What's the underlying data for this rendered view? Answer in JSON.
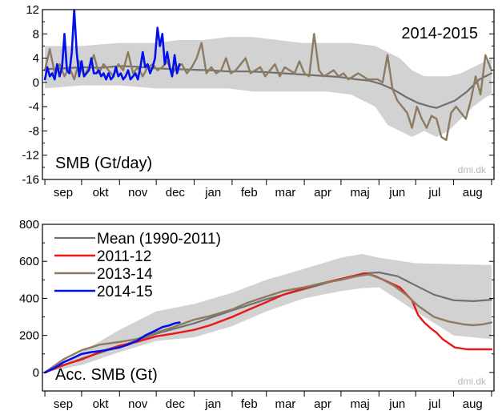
{
  "chart_data": [
    {
      "type": "line",
      "title": "",
      "panel_label": "SMB (Gt/day)",
      "season_label": "2014-2015",
      "credit": "dmi.dk",
      "xlabel": "",
      "ylabel": "",
      "ylim": [
        -16,
        12
      ],
      "yticks": [
        "-16",
        "-12",
        "-8",
        "-4",
        "0",
        "4",
        "8",
        "12"
      ],
      "x_unit": "day_of_season_from_sep_1",
      "xlim": [
        -2,
        367
      ],
      "months": [
        "sep",
        "okt",
        "nov",
        "dec",
        "jan",
        "feb",
        "mar",
        "apr",
        "maj",
        "jun",
        "jul",
        "aug"
      ],
      "grid": false,
      "band": {
        "name": "",
        "color": "#d2d2d2",
        "x": [
          0,
          30,
          61,
          91,
          110,
          130,
          150,
          170,
          190,
          210,
          230,
          250,
          270,
          280,
          290,
          300,
          310,
          320,
          330,
          340,
          350,
          360,
          365
        ],
        "upper": [
          6,
          6,
          6.5,
          6.5,
          7,
          7,
          7.5,
          7.5,
          7,
          6.5,
          6.5,
          6.5,
          6,
          5,
          4,
          2,
          1,
          1,
          1,
          1.5,
          2.5,
          3.5,
          4
        ],
        "lower": [
          -1,
          -0.5,
          -0.5,
          -1,
          -1,
          -1,
          -1,
          -1.5,
          -1.5,
          -1.5,
          -1.5,
          -2,
          -4,
          -7,
          -8,
          -9,
          -8,
          -9,
          -8,
          -6,
          -4,
          -2.5,
          -2
        ]
      },
      "series": [
        {
          "name": "",
          "color": "#707070",
          "width": 2.2,
          "x": [
            0,
            15,
            30,
            45,
            61,
            75,
            91,
            105,
            120,
            135,
            150,
            165,
            180,
            195,
            210,
            225,
            240,
            255,
            265,
            275,
            285,
            295,
            305,
            315,
            320,
            325,
            335,
            345,
            355,
            365
          ],
          "y": [
            2.2,
            2.3,
            2.5,
            2.4,
            2.7,
            2.6,
            2.3,
            2.2,
            2.1,
            2.0,
            1.8,
            1.8,
            1.7,
            1.5,
            1.3,
            1.1,
            0.9,
            0.5,
            0.3,
            -0.3,
            -1.2,
            -2.4,
            -3.4,
            -4.0,
            -4.2,
            -3.8,
            -3.0,
            -1.5,
            0.5,
            1.5
          ]
        },
        {
          "name": "",
          "color": "#8c7b61",
          "width": 2.4,
          "x": [
            0,
            4,
            8,
            12,
            16,
            20,
            24,
            28,
            32,
            36,
            40,
            44,
            48,
            52,
            56,
            60,
            64,
            68,
            72,
            76,
            80,
            84,
            88,
            92,
            96,
            100,
            104,
            108,
            112,
            116,
            120,
            124,
            128,
            132,
            136,
            140,
            144,
            148,
            152,
            156,
            160,
            164,
            168,
            172,
            176,
            180,
            184,
            188,
            192,
            196,
            200,
            204,
            208,
            212,
            216,
            220,
            224,
            228,
            232,
            236,
            240,
            244,
            248,
            252,
            256,
            260,
            264,
            268,
            272,
            276,
            280,
            284,
            288,
            292,
            296,
            300,
            304,
            308,
            312,
            316,
            320,
            324,
            328,
            332,
            336,
            340,
            344,
            348,
            352,
            356,
            360,
            365
          ],
          "y": [
            2,
            5.5,
            1.5,
            3,
            1,
            2.5,
            0.5,
            3.5,
            1,
            2.5,
            4.5,
            1.5,
            3,
            2,
            1,
            3,
            2,
            5,
            1.5,
            2.5,
            1,
            2.5,
            3,
            2,
            2.5,
            3.5,
            1.5,
            2.5,
            3,
            1.5,
            2.5,
            4,
            6.5,
            1.5,
            2.5,
            1.5,
            2,
            4,
            1.5,
            2,
            3,
            4,
            1.5,
            2,
            2.5,
            1,
            2,
            3,
            1,
            2.5,
            2,
            1.5,
            3.5,
            1.5,
            1,
            8,
            2,
            1,
            1.5,
            2,
            1,
            1.5,
            0.5,
            1,
            1.5,
            1,
            0.5,
            0.5,
            0.5,
            0,
            4.5,
            -1,
            -3,
            -4,
            -5,
            -7.5,
            -4,
            -6,
            -7.5,
            -5.5,
            -6,
            -9,
            -9.5,
            -5,
            -4,
            -5,
            -6,
            -3,
            1,
            -2,
            4.5,
            2
          ],
          "segments_note": ""
        },
        {
          "name": "",
          "color": "#0010ee",
          "width": 2.6,
          "x": [
            0,
            2,
            4,
            6,
            8,
            10,
            12,
            14,
            16,
            18,
            20,
            22,
            24,
            26,
            28,
            30,
            32,
            34,
            36,
            38,
            40,
            42,
            44,
            46,
            48,
            50,
            52,
            54,
            56,
            58,
            60,
            62,
            64,
            66,
            68,
            70,
            72,
            74,
            76,
            78,
            80,
            82,
            84,
            86,
            88,
            90,
            92,
            94,
            96,
            98,
            100,
            102,
            104,
            106,
            108,
            110
          ],
          "y": [
            0.5,
            2.5,
            1,
            1.5,
            0.5,
            3,
            1,
            2.5,
            8,
            2,
            1.5,
            5,
            12,
            5,
            1,
            3.5,
            1,
            1.5,
            2,
            4,
            1.5,
            1.5,
            2,
            1,
            1.5,
            0.5,
            1.5,
            0.5,
            1,
            2.5,
            1,
            1.5,
            0.5,
            1,
            2,
            0.5,
            1,
            1.5,
            0.5,
            2.5,
            5,
            2.5,
            3,
            1.5,
            2.5,
            4,
            9,
            6,
            8,
            3,
            5,
            2.5,
            1,
            4.5,
            1.5,
            3
          ]
        }
      ]
    },
    {
      "type": "line",
      "title": "",
      "panel_label": "Acc. SMB (Gt)",
      "credit": "dmi.dk",
      "xlabel": "",
      "ylabel": "",
      "ylim": [
        -100,
        800
      ],
      "yticks": [
        "0",
        "200",
        "400",
        "600",
        "800"
      ],
      "x_unit": "day_of_season_from_sep_1",
      "xlim": [
        -2,
        367
      ],
      "months": [
        "sep",
        "okt",
        "nov",
        "dec",
        "jan",
        "feb",
        "mar",
        "apr",
        "maj",
        "jun",
        "jul",
        "aug"
      ],
      "grid": false,
      "legend_position": "top-left",
      "band": {
        "name": "",
        "color": "#d2d2d2",
        "x": [
          0,
          30,
          61,
          91,
          122,
          153,
          181,
          212,
          242,
          259,
          273,
          303,
          334,
          365
        ],
        "upper": [
          0,
          110,
          230,
          330,
          370,
          430,
          500,
          560,
          620,
          640,
          620,
          590,
          585,
          580
        ],
        "lower": [
          0,
          40,
          110,
          170,
          190,
          250,
          330,
          400,
          440,
          455,
          460,
          330,
          200,
          180
        ]
      },
      "series": [
        {
          "name": "Mean (1990-2011)",
          "color": "#707070",
          "width": 2.2,
          "x": [
            0,
            30,
            61,
            91,
            122,
            153,
            181,
            212,
            242,
            260,
            273,
            288,
            303,
            318,
            334,
            350,
            365
          ],
          "y": [
            0,
            75,
            140,
            210,
            265,
            335,
            395,
            450,
            505,
            535,
            540,
            520,
            470,
            420,
            390,
            385,
            393
          ]
        },
        {
          "name": "2011-12",
          "color": "#e81818",
          "width": 2.4,
          "x": [
            0,
            15,
            30,
            45,
            61,
            75,
            91,
            105,
            122,
            135,
            153,
            165,
            181,
            195,
            212,
            225,
            242,
            255,
            262,
            270,
            280,
            290,
            300,
            305,
            310,
            315,
            320,
            325,
            335,
            345,
            355,
            365
          ],
          "y": [
            0,
            40,
            70,
            110,
            145,
            165,
            195,
            210,
            230,
            255,
            300,
            335,
            380,
            420,
            455,
            480,
            505,
            525,
            535,
            520,
            490,
            460,
            390,
            310,
            270,
            240,
            215,
            180,
            135,
            125,
            125,
            125
          ]
        },
        {
          "name": "2013-14",
          "color": "#8c7b61",
          "width": 2.4,
          "x": [
            0,
            15,
            30,
            45,
            61,
            75,
            91,
            105,
            122,
            135,
            153,
            165,
            181,
            195,
            212,
            225,
            242,
            255,
            265,
            275,
            285,
            295,
            305,
            318,
            330,
            342,
            350,
            358,
            365
          ],
          "y": [
            0,
            70,
            120,
            150,
            165,
            180,
            215,
            245,
            285,
            305,
            340,
            375,
            410,
            440,
            460,
            480,
            500,
            520,
            530,
            505,
            470,
            420,
            360,
            300,
            275,
            260,
            255,
            260,
            270
          ]
        },
        {
          "name": "2014-15",
          "color": "#0010ee",
          "width": 2.6,
          "x": [
            0,
            8,
            15,
            22,
            30,
            38,
            45,
            53,
            61,
            68,
            75,
            82,
            90,
            96,
            102,
            106,
            110
          ],
          "y": [
            0,
            25,
            55,
            75,
            100,
            110,
            115,
            125,
            135,
            150,
            170,
            200,
            225,
            245,
            255,
            265,
            270
          ]
        }
      ]
    }
  ]
}
